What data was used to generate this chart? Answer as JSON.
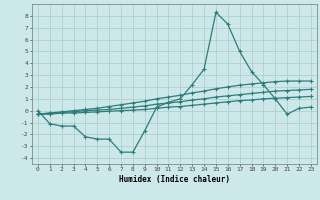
{
  "xlabel": "Humidex (Indice chaleur)",
  "bg_color": "#cce8e8",
  "line_color": "#2e7d7d",
  "grid_color": "#aacccc",
  "ylim": [
    -4.5,
    9.0
  ],
  "xlim": [
    -0.5,
    23.5
  ],
  "main_y": [
    0,
    -1.1,
    -1.3,
    -1.3,
    -2.2,
    -2.4,
    -2.4,
    -3.5,
    -3.5,
    -1.7,
    0.3,
    0.7,
    1.0,
    2.2,
    3.5,
    8.3,
    7.3,
    5.0,
    3.3,
    2.2,
    1.0,
    -0.3,
    0.2,
    0.3
  ],
  "line_a": [
    -0.3,
    -0.3,
    -0.2,
    -0.2,
    -0.15,
    -0.1,
    -0.05,
    0.0,
    0.05,
    0.1,
    0.2,
    0.3,
    0.35,
    0.45,
    0.55,
    0.65,
    0.75,
    0.85,
    0.9,
    1.0,
    1.05,
    1.1,
    1.15,
    1.2
  ],
  "line_b": [
    -0.3,
    -0.2,
    -0.15,
    -0.1,
    0.0,
    0.05,
    0.1,
    0.2,
    0.3,
    0.4,
    0.55,
    0.65,
    0.75,
    0.9,
    1.0,
    1.15,
    1.25,
    1.35,
    1.45,
    1.55,
    1.65,
    1.7,
    1.75,
    1.8
  ],
  "line_c": [
    -0.3,
    -0.2,
    -0.1,
    0.0,
    0.1,
    0.2,
    0.35,
    0.5,
    0.65,
    0.8,
    1.0,
    1.15,
    1.3,
    1.5,
    1.65,
    1.85,
    2.0,
    2.15,
    2.25,
    2.35,
    2.45,
    2.5,
    2.5,
    2.5
  ]
}
